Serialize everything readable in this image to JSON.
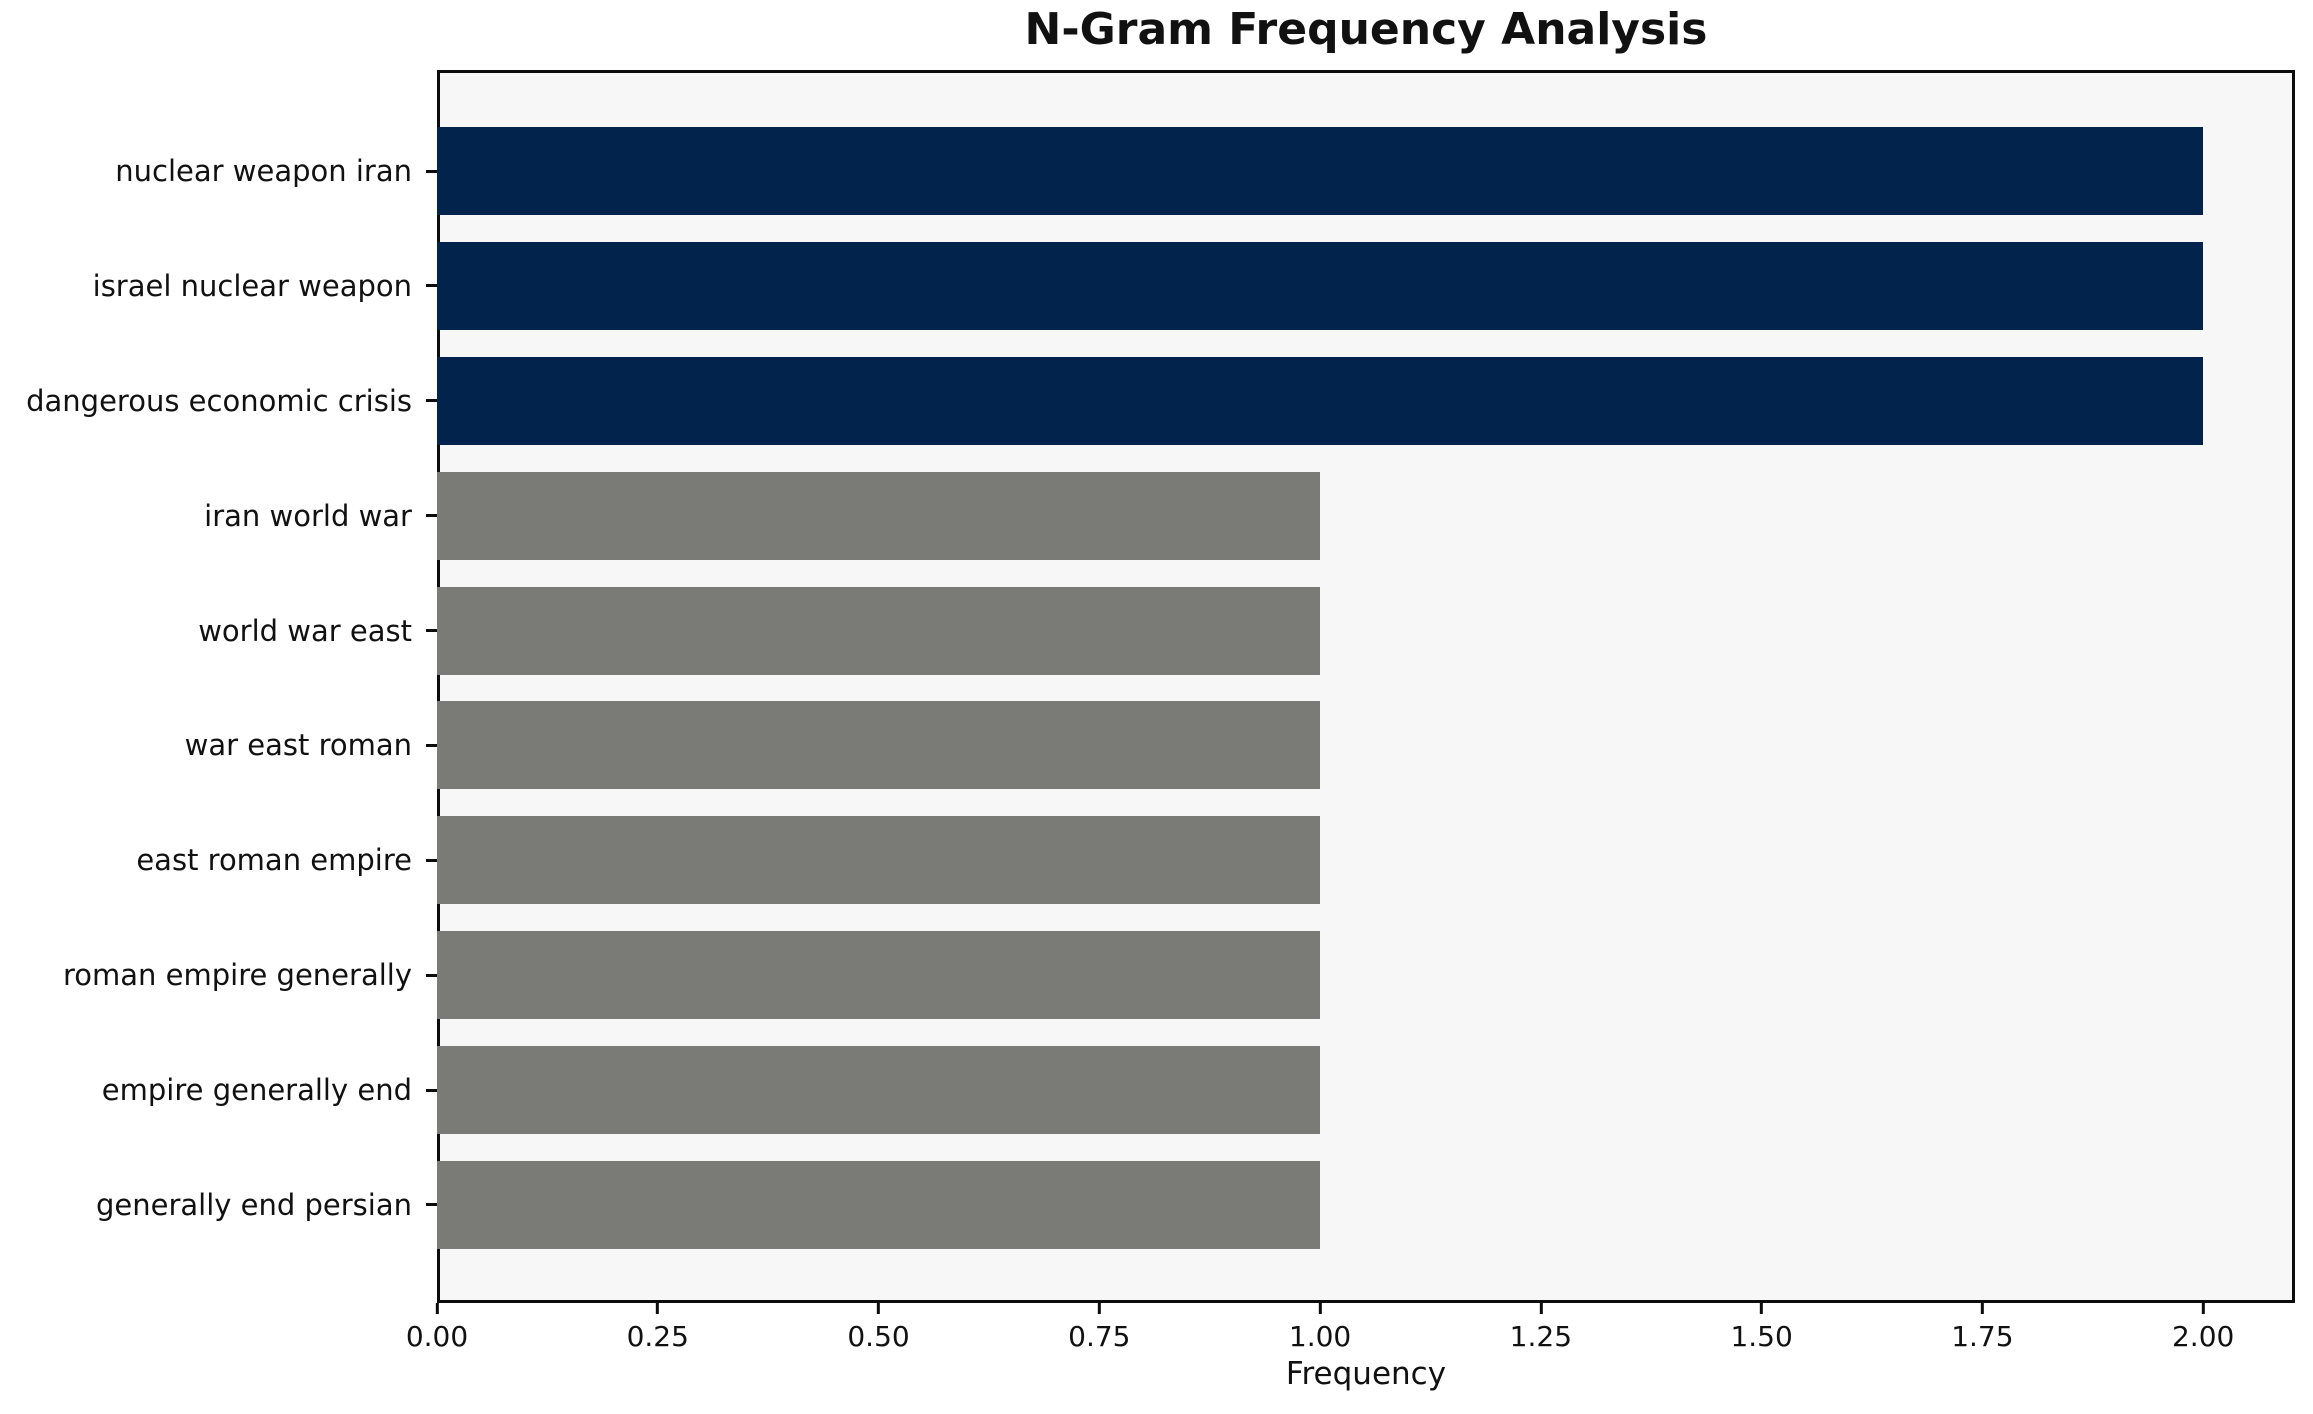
{
  "chart_data": {
    "type": "bar",
    "orientation": "horizontal",
    "title": "N-Gram Frequency Analysis",
    "xlabel": "Frequency",
    "ylabel": "",
    "categories": [
      "nuclear weapon iran",
      "israel nuclear weapon",
      "dangerous economic crisis",
      "iran world war",
      "world war east",
      "war east roman",
      "east roman empire",
      "roman empire generally",
      "empire generally end",
      "generally end persian"
    ],
    "values": [
      2,
      2,
      2,
      1,
      1,
      1,
      1,
      1,
      1,
      1
    ],
    "bar_colors": [
      "#02234c",
      "#02234c",
      "#02234c",
      "#7a7a77",
      "#7a7a77",
      "#7a7a77",
      "#7a7a77",
      "#7a7a77",
      "#7a7a77",
      "#7a7a77"
    ],
    "x_tick_values": [
      0,
      0.25,
      0.5,
      0.75,
      1.0,
      1.25,
      1.5,
      1.75,
      2.0
    ],
    "x_tick_labels": [
      "0.00",
      "0.25",
      "0.50",
      "0.75",
      "1.00",
      "1.25",
      "1.50",
      "1.75",
      "2.00"
    ],
    "xlim": [
      0,
      2.104
    ],
    "grid": false,
    "legend": null,
    "colors": {
      "highlight_bar": "#02234c",
      "default_bar": "#7a7a77",
      "plot_background": "#f7f7f7",
      "figure_background": "#ffffff",
      "axis_line": "#0c0c0c",
      "text": "#111111"
    }
  }
}
